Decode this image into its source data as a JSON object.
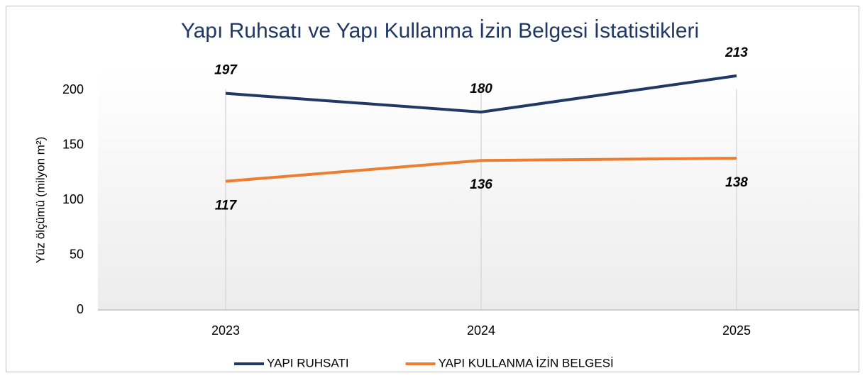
{
  "chart_data": {
    "type": "line",
    "title": "Yapı Ruhsatı ve Yapı Kullanma İzin Belgesi İstatistikleri",
    "y_label": "Yüz ölçümü (milyon m²)",
    "categories": [
      "2023",
      "2024",
      "2025"
    ],
    "series": [
      {
        "name": "YAPI RUHSATI",
        "color": "#203864",
        "values": [
          197,
          180,
          213
        ],
        "label_position": "above"
      },
      {
        "name": "YAPI KULLANMA İZİN BELGESİ",
        "color": "#ed7d31",
        "values": [
          117,
          136,
          138
        ],
        "label_position": "below"
      }
    ],
    "ylim": [
      0,
      220
    ],
    "yticks": [
      0,
      50,
      100,
      150,
      200
    ],
    "x_grid": true,
    "legend": "bottom"
  }
}
